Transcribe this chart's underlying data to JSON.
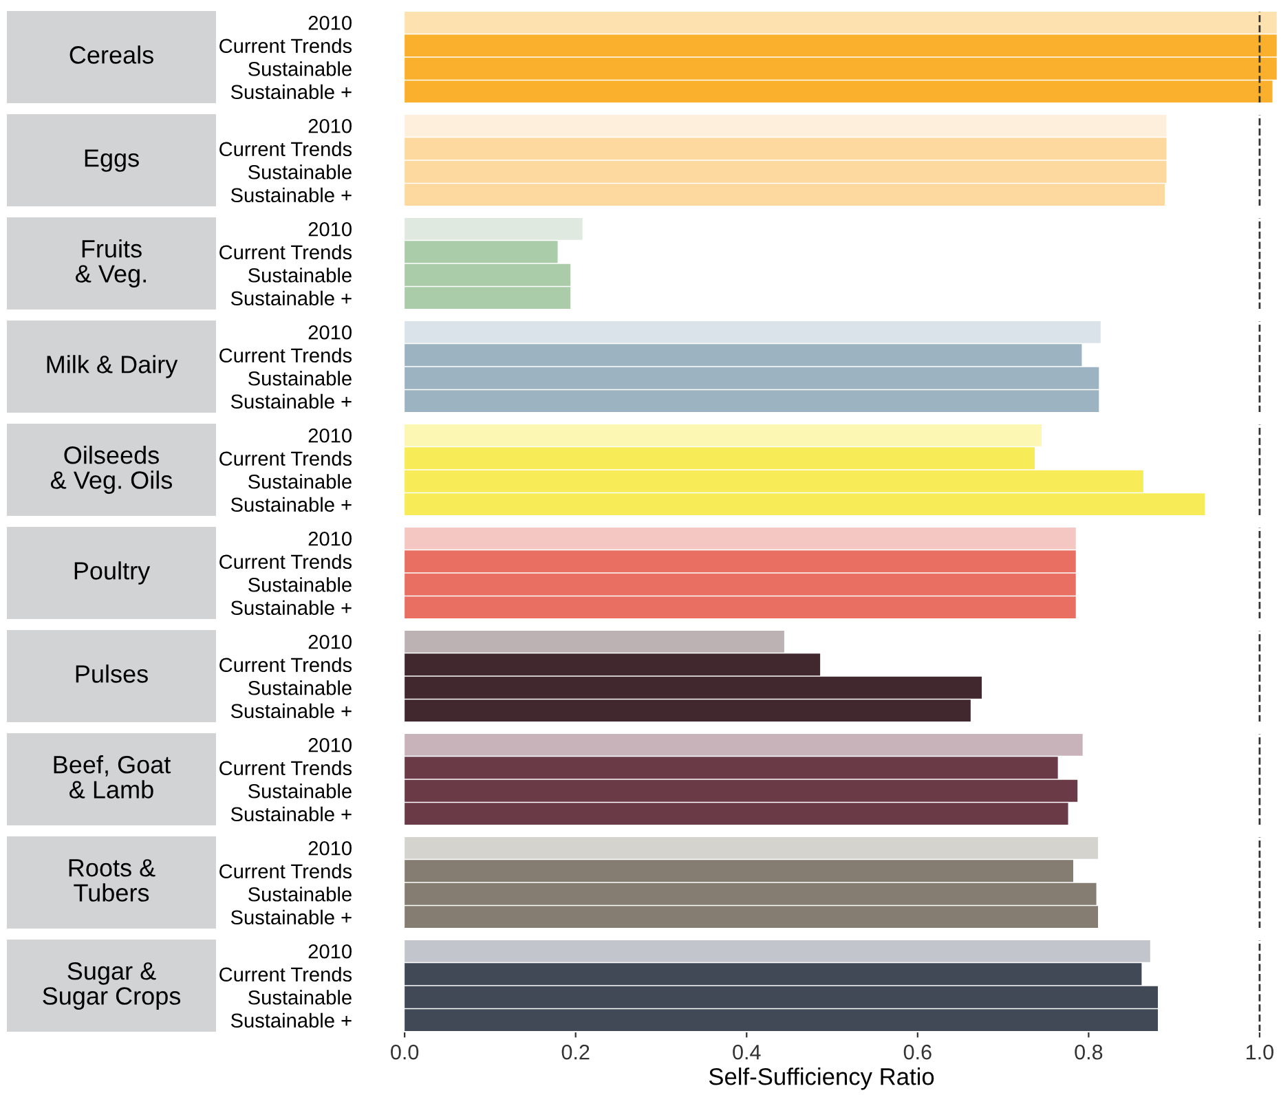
{
  "chart_data": [
    {
      "type": "bar",
      "orientation": "horizontal",
      "title": "Cereals",
      "categories": [
        "2010",
        "Current Trends",
        "Sustainable",
        "Sustainable +"
      ],
      "values": [
        1.02,
        1.02,
        1.02,
        1.015
      ],
      "colors": [
        "#fde2b0",
        "#fbb02d",
        "#fbb02d",
        "#fbb02d"
      ],
      "xlim": [
        -0.05,
        1.025
      ],
      "tick_labels": "y",
      "ref_lines": [
        {
          "axis": "x",
          "value": 1.0,
          "line_style": "dashed",
          "color": "#333333"
        }
      ]
    },
    {
      "type": "bar",
      "orientation": "horizontal",
      "title": "Eggs",
      "categories": [
        "2010",
        "Current Trends",
        "Sustainable",
        "Sustainable +"
      ],
      "values": [
        0.891,
        0.891,
        0.891,
        0.889
      ],
      "colors": [
        "#fdefdc",
        "#fdd9a0",
        "#fdd9a0",
        "#fdd9a0"
      ],
      "xlim": [
        -0.05,
        1.025
      ],
      "tick_labels": "y",
      "ref_lines": [
        {
          "axis": "x",
          "value": 1.0,
          "line_style": "dashed",
          "color": "#333333"
        }
      ]
    },
    {
      "type": "bar",
      "orientation": "horizontal",
      "title": "Fruits\n& Veg.",
      "categories": [
        "2010",
        "Current Trends",
        "Sustainable",
        "Sustainable +"
      ],
      "values": [
        0.208,
        0.179,
        0.194,
        0.194
      ],
      "colors": [
        "#dfe9df",
        "#aacca8",
        "#aacca8",
        "#aacca8"
      ],
      "xlim": [
        -0.05,
        1.025
      ],
      "tick_labels": "y",
      "ref_lines": [
        {
          "axis": "x",
          "value": 1.0,
          "line_style": "dashed",
          "color": "#333333"
        }
      ]
    },
    {
      "type": "bar",
      "orientation": "horizontal",
      "title": "Milk & Dairy",
      "categories": [
        "2010",
        "Current Trends",
        "Sustainable",
        "Sustainable +"
      ],
      "values": [
        0.814,
        0.792,
        0.812,
        0.812
      ],
      "colors": [
        "#dae2ea",
        "#9cb4c2",
        "#9cb4c2",
        "#9cb4c2"
      ],
      "xlim": [
        -0.05,
        1.025
      ],
      "tick_labels": "y",
      "ref_lines": [
        {
          "axis": "x",
          "value": 1.0,
          "line_style": "dashed",
          "color": "#333333"
        }
      ]
    },
    {
      "type": "bar",
      "orientation": "horizontal",
      "title": "Oilseeds\n& Veg. Oils",
      "categories": [
        "2010",
        "Current Trends",
        "Sustainable",
        "Sustainable +"
      ],
      "values": [
        0.745,
        0.737,
        0.864,
        0.936
      ],
      "colors": [
        "#fcf7b2",
        "#f7ec58",
        "#f7ec58",
        "#f7ec58"
      ],
      "xlim": [
        -0.05,
        1.025
      ],
      "tick_labels": "y",
      "ref_lines": [
        {
          "axis": "x",
          "value": 1.0,
          "line_style": "dashed",
          "color": "#333333"
        }
      ]
    },
    {
      "type": "bar",
      "orientation": "horizontal",
      "title": "Poultry",
      "categories": [
        "2010",
        "Current Trends",
        "Sustainable",
        "Sustainable +"
      ],
      "values": [
        0.785,
        0.785,
        0.785,
        0.785
      ],
      "colors": [
        "#f5c7c2",
        "#e86f62",
        "#e86f62",
        "#e86f62"
      ],
      "xlim": [
        -0.05,
        1.025
      ],
      "tick_labels": "y",
      "ref_lines": [
        {
          "axis": "x",
          "value": 1.0,
          "line_style": "dashed",
          "color": "#333333"
        }
      ]
    },
    {
      "type": "bar",
      "orientation": "horizontal",
      "title": "Pulses",
      "categories": [
        "2010",
        "Current Trends",
        "Sustainable",
        "Sustainable +"
      ],
      "values": [
        0.444,
        0.486,
        0.675,
        0.662
      ],
      "colors": [
        "#bcb2b4",
        "#41272e",
        "#41272e",
        "#41272e"
      ],
      "xlim": [
        -0.05,
        1.025
      ],
      "tick_labels": "y",
      "ref_lines": [
        {
          "axis": "x",
          "value": 1.0,
          "line_style": "dashed",
          "color": "#333333"
        }
      ]
    },
    {
      "type": "bar",
      "orientation": "horizontal",
      "title": "Beef, Goat\n& Lamb",
      "categories": [
        "2010",
        "Current Trends",
        "Sustainable",
        "Sustainable +"
      ],
      "values": [
        0.793,
        0.764,
        0.787,
        0.776
      ],
      "colors": [
        "#c9b3ba",
        "#6a3a47",
        "#6a3a47",
        "#6a3a47"
      ],
      "xlim": [
        -0.05,
        1.025
      ],
      "tick_labels": "y",
      "ref_lines": [
        {
          "axis": "x",
          "value": 1.0,
          "line_style": "dashed",
          "color": "#333333"
        }
      ]
    },
    {
      "type": "bar",
      "orientation": "horizontal",
      "title": "Roots &\nTubers",
      "categories": [
        "2010",
        "Current Trends",
        "Sustainable",
        "Sustainable +"
      ],
      "values": [
        0.811,
        0.782,
        0.809,
        0.811
      ],
      "colors": [
        "#d5d3ce",
        "#857d71",
        "#857d71",
        "#857d71"
      ],
      "xlim": [
        -0.05,
        1.025
      ],
      "tick_labels": "y",
      "ref_lines": [
        {
          "axis": "x",
          "value": 1.0,
          "line_style": "dashed",
          "color": "#333333"
        }
      ]
    },
    {
      "type": "bar",
      "orientation": "horizontal",
      "title": "Sugar &\nSugar Crops",
      "categories": [
        "2010",
        "Current Trends",
        "Sustainable",
        "Sustainable +"
      ],
      "values": [
        0.872,
        0.862,
        0.881,
        0.881
      ],
      "colors": [
        "#c2c5cb",
        "#404955",
        "#404955",
        "#404955"
      ],
      "xlim": [
        -0.05,
        1.025
      ],
      "xticks": [
        {
          "value": 0,
          "label": "0.0"
        },
        {
          "value": 0.2,
          "label": "0.2"
        },
        {
          "value": 0.4,
          "label": "0.4"
        },
        {
          "value": 0.6,
          "label": "0.6"
        },
        {
          "value": 0.8,
          "label": "0.8"
        },
        {
          "value": 1.0,
          "label": "1.0"
        }
      ],
      "xlabel": "Self-Sufficiency Ratio",
      "ref_lines": [
        {
          "axis": "x",
          "value": 1.0,
          "line_style": "dashed",
          "color": "#333333"
        }
      ]
    }
  ]
}
